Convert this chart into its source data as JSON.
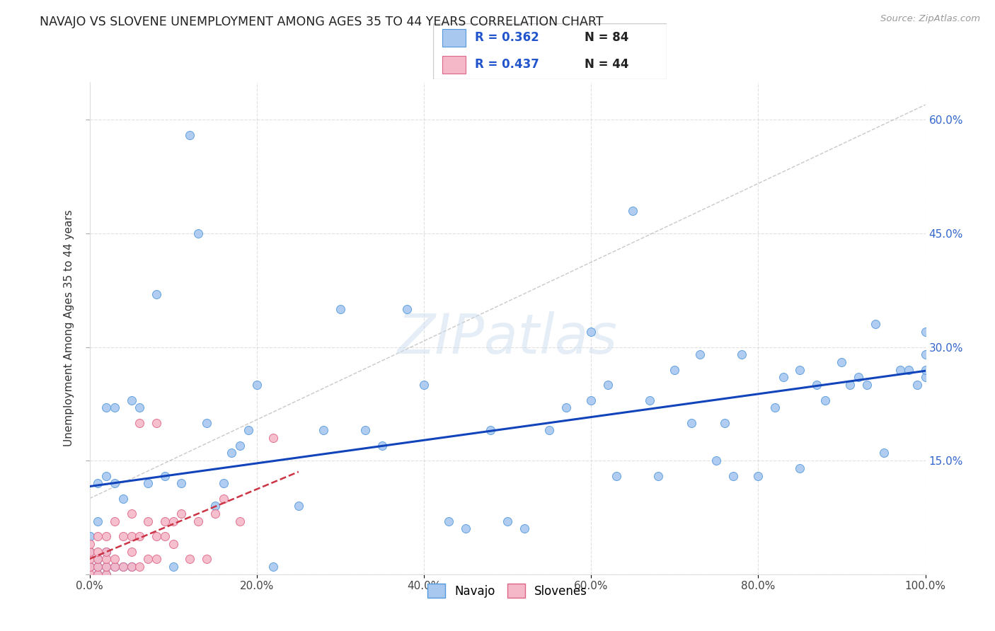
{
  "title": "NAVAJO VS SLOVENE UNEMPLOYMENT AMONG AGES 35 TO 44 YEARS CORRELATION CHART",
  "source": "Source: ZipAtlas.com",
  "ylabel": "Unemployment Among Ages 35 to 44 years",
  "xlim": [
    0,
    1.0
  ],
  "ylim": [
    0,
    0.65
  ],
  "xtick_vals": [
    0.0,
    0.2,
    0.4,
    0.6,
    0.8,
    1.0
  ],
  "xticklabels": [
    "0.0%",
    "20.0%",
    "40.0%",
    "60.0%",
    "80.0%",
    "100.0%"
  ],
  "ytick_vals": [
    0.0,
    0.15,
    0.3,
    0.45,
    0.6
  ],
  "yticklabels_right": [
    "",
    "15.0%",
    "30.0%",
    "45.0%",
    "60.0%"
  ],
  "navajo_color": "#a8c8f0",
  "navajo_edge": "#5599dd",
  "slovene_color": "#f5b8c8",
  "slovene_edge": "#dd6688",
  "trend_navajo_color": "#1144bb",
  "trend_slovene_color": "#cc3344",
  "legend_R_navajo": "R = 0.362",
  "legend_N_navajo": "N = 84",
  "legend_R_slovene": "R = 0.437",
  "legend_N_slovene": "N = 44",
  "watermark": "ZIPatlas",
  "marker_size": 75,
  "navajo_x": [
    0.0,
    0.0,
    0.0,
    0.01,
    0.01,
    0.01,
    0.01,
    0.01,
    0.02,
    0.02,
    0.02,
    0.02,
    0.02,
    0.03,
    0.03,
    0.03,
    0.04,
    0.04,
    0.05,
    0.05,
    0.06,
    0.07,
    0.08,
    0.09,
    0.1,
    0.11,
    0.12,
    0.13,
    0.14,
    0.15,
    0.16,
    0.17,
    0.18,
    0.19,
    0.2,
    0.22,
    0.25,
    0.28,
    0.3,
    0.33,
    0.35,
    0.38,
    0.4,
    0.43,
    0.45,
    0.48,
    0.5,
    0.52,
    0.55,
    0.57,
    0.6,
    0.6,
    0.62,
    0.63,
    0.65,
    0.67,
    0.68,
    0.7,
    0.72,
    0.73,
    0.75,
    0.76,
    0.77,
    0.78,
    0.8,
    0.82,
    0.83,
    0.85,
    0.85,
    0.87,
    0.88,
    0.9,
    0.91,
    0.92,
    0.93,
    0.94,
    0.95,
    0.97,
    0.98,
    0.99,
    1.0,
    1.0,
    1.0,
    1.0
  ],
  "navajo_y": [
    0.03,
    0.01,
    0.05,
    0.0,
    0.02,
    0.07,
    0.12,
    0.01,
    0.0,
    0.01,
    0.03,
    0.13,
    0.22,
    0.01,
    0.12,
    0.22,
    0.01,
    0.1,
    0.01,
    0.23,
    0.22,
    0.12,
    0.37,
    0.13,
    0.01,
    0.12,
    0.58,
    0.45,
    0.2,
    0.09,
    0.12,
    0.16,
    0.17,
    0.19,
    0.25,
    0.01,
    0.09,
    0.19,
    0.35,
    0.19,
    0.17,
    0.35,
    0.25,
    0.07,
    0.06,
    0.19,
    0.07,
    0.06,
    0.19,
    0.22,
    0.23,
    0.32,
    0.25,
    0.13,
    0.48,
    0.23,
    0.13,
    0.27,
    0.2,
    0.29,
    0.15,
    0.2,
    0.13,
    0.29,
    0.13,
    0.22,
    0.26,
    0.27,
    0.14,
    0.25,
    0.23,
    0.28,
    0.25,
    0.26,
    0.25,
    0.33,
    0.16,
    0.27,
    0.27,
    0.25,
    0.29,
    0.32,
    0.26,
    0.27
  ],
  "slovene_x": [
    0.0,
    0.0,
    0.0,
    0.0,
    0.0,
    0.01,
    0.01,
    0.01,
    0.01,
    0.01,
    0.02,
    0.02,
    0.02,
    0.02,
    0.02,
    0.03,
    0.03,
    0.03,
    0.04,
    0.04,
    0.05,
    0.05,
    0.05,
    0.05,
    0.06,
    0.06,
    0.06,
    0.07,
    0.07,
    0.08,
    0.08,
    0.08,
    0.09,
    0.09,
    0.1,
    0.1,
    0.11,
    0.12,
    0.13,
    0.14,
    0.15,
    0.16,
    0.18,
    0.22
  ],
  "slovene_y": [
    0.0,
    0.01,
    0.02,
    0.03,
    0.04,
    0.0,
    0.01,
    0.02,
    0.03,
    0.05,
    0.0,
    0.01,
    0.02,
    0.03,
    0.05,
    0.01,
    0.02,
    0.07,
    0.01,
    0.05,
    0.01,
    0.03,
    0.05,
    0.08,
    0.01,
    0.05,
    0.2,
    0.02,
    0.07,
    0.02,
    0.05,
    0.2,
    0.05,
    0.07,
    0.04,
    0.07,
    0.08,
    0.02,
    0.07,
    0.02,
    0.08,
    0.1,
    0.07,
    0.18
  ]
}
